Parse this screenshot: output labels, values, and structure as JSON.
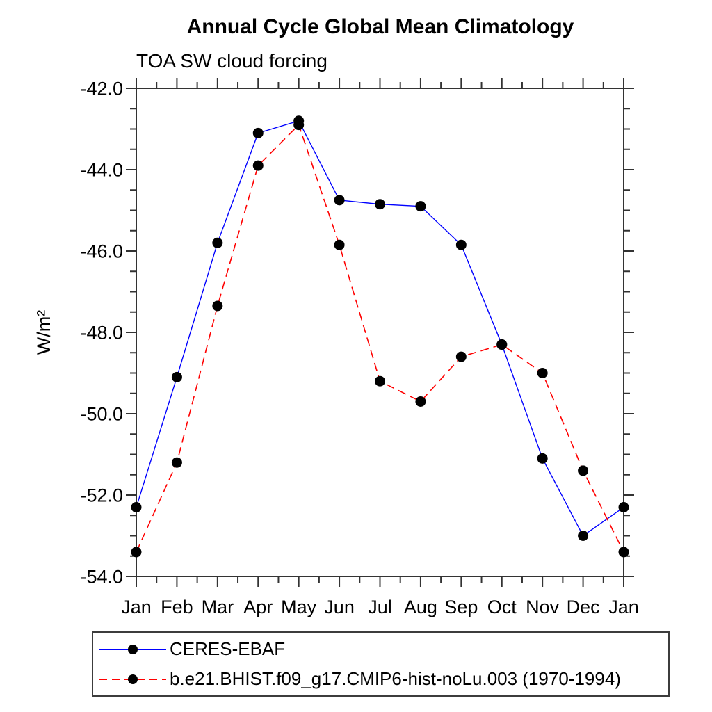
{
  "title": "Annual Cycle Global Mean Climatology",
  "subtitle": "TOA SW cloud forcing",
  "ylabel": "W/m²",
  "colors": {
    "ceres_line": "#0000ff",
    "model_line": "#ff0000",
    "marker": "#000000",
    "axis": "#333333",
    "text": "#000000"
  },
  "legend": {
    "entries": [
      {
        "label": "CERES-EBAF",
        "color": "#0000ff",
        "style": "solid",
        "marker": "filled-circle"
      },
      {
        "label": "b.e21.BHIST.f09_g17.CMIP6-hist-noLu.003 (1970-1994)",
        "color": "#ff0000",
        "style": "dashed",
        "marker": "filled-circle"
      }
    ]
  },
  "chart_data": {
    "type": "line",
    "title": "Annual Cycle Global Mean Climatology",
    "subtitle": "TOA SW cloud forcing",
    "xlabel": "",
    "ylabel": "W/m²",
    "categories": [
      "Jan",
      "Feb",
      "Mar",
      "Apr",
      "May",
      "Jun",
      "Jul",
      "Aug",
      "Sep",
      "Oct",
      "Nov",
      "Dec",
      "Jan"
    ],
    "series": [
      {
        "name": "CERES-EBAF",
        "color": "#0000ff",
        "line_style": "solid",
        "line_width": 1.4,
        "marker": "filled-circle",
        "marker_color": "#000000",
        "values": [
          -52.3,
          -49.1,
          -45.8,
          -43.1,
          -42.8,
          -44.75,
          -44.85,
          -44.9,
          -45.85,
          -48.3,
          -51.1,
          -53.0,
          -52.3
        ]
      },
      {
        "name": "b.e21.BHIST.f09_g17.CMIP6-hist-noLu.003 (1970-1994)",
        "color": "#ff0000",
        "line_style": "dashed",
        "line_width": 1.6,
        "marker": "filled-circle",
        "marker_color": "#000000",
        "values": [
          -53.4,
          -51.2,
          -47.35,
          -43.9,
          -42.9,
          -45.85,
          -49.2,
          -49.7,
          -48.6,
          -48.3,
          -49.0,
          -51.4,
          -53.4
        ]
      }
    ],
    "ylim": [
      -54.0,
      -42.0
    ],
    "yticks": [
      -42.0,
      -44.0,
      -46.0,
      -48.0,
      -50.0,
      -52.0,
      -54.0
    ],
    "ytick_labels": [
      "-42.0",
      "-44.0",
      "-46.0",
      "-48.0",
      "-50.0",
      "-52.0",
      "-54.0"
    ],
    "y_minor_step": 0.5,
    "x_minor_step": 0.5,
    "grid": false,
    "tick_direction": "out",
    "legend_position": "bottom-left-box"
  }
}
